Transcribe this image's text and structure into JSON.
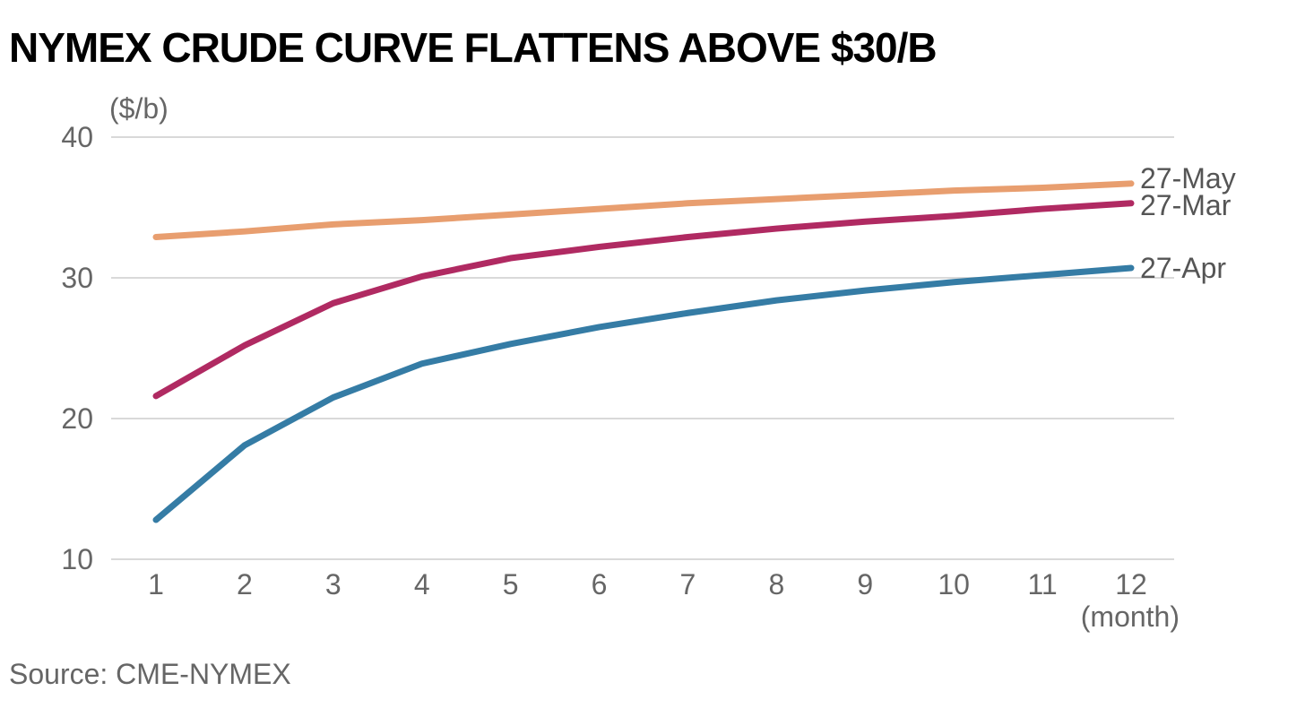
{
  "chart_data": {
    "type": "line",
    "title": "NYMEX CRUDE CURVE FLATTENS ABOVE $30/B",
    "ylabel": "($/b)",
    "xlabel": "(month)",
    "source": "Source:  CME-NYMEX",
    "x": [
      1,
      2,
      3,
      4,
      5,
      6,
      7,
      8,
      9,
      10,
      11,
      12
    ],
    "ylim": [
      10,
      40
    ],
    "yticks": [
      10,
      20,
      30,
      40
    ],
    "grid": true,
    "series": [
      {
        "name": "27-May",
        "color": "#e89e6f",
        "values": [
          32.9,
          33.3,
          33.8,
          34.1,
          34.5,
          34.9,
          35.3,
          35.6,
          35.9,
          36.2,
          36.4,
          36.7
        ]
      },
      {
        "name": "27-Mar",
        "color": "#b02a62",
        "values": [
          21.6,
          25.2,
          28.2,
          30.1,
          31.4,
          32.2,
          32.9,
          33.5,
          34.0,
          34.4,
          34.9,
          35.3
        ]
      },
      {
        "name": "27-Apr",
        "color": "#357ca5",
        "values": [
          12.8,
          18.1,
          21.5,
          23.9,
          25.3,
          26.5,
          27.5,
          28.4,
          29.1,
          29.7,
          30.2,
          30.7
        ]
      }
    ]
  }
}
